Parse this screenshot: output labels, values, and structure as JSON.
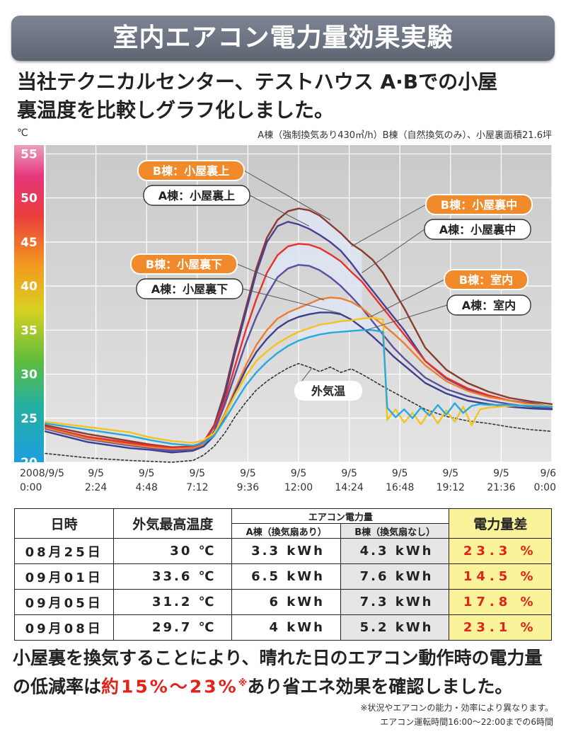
{
  "banner": {
    "title": "室内エアコン電力量効果実験"
  },
  "subtitle": {
    "line1": "当社テクニカルセンター、テストハウス A·Bでの小屋",
    "line2": "裏温度を比較しグラフ化しました。"
  },
  "note_top": "A棟（強制換気あり430㎥/h）B棟（自然換気のみ）、小屋裏面積21.6坪",
  "unit_label": "℃",
  "chart_data": {
    "type": "line",
    "x_ticks": [
      "2008/9/5 0:00",
      "9/5 2:24",
      "9/5 4:48",
      "9/5 7:12",
      "9/5 9:36",
      "9/5 12:00",
      "9/5 14:24",
      "9/5 16:48",
      "9/5 19:12",
      "9/5 21:36",
      "9/6 0:00"
    ],
    "y_ticks": [
      20,
      25,
      30,
      35,
      40,
      45,
      50,
      55
    ],
    "ylim": [
      20,
      56
    ],
    "xlim": [
      0,
      24
    ],
    "grid": true,
    "series": [
      {
        "name": "B棟：小屋裏上",
        "color": "#8a3b2d",
        "x": [
          0,
          2,
          4,
          5,
          6,
          7,
          7.5,
          8,
          8.5,
          9,
          9.5,
          10,
          10.5,
          11,
          11.5,
          12,
          12.5,
          13,
          13.5,
          14,
          14.5,
          15,
          15.5,
          16,
          16.5,
          17,
          18,
          19,
          20,
          21,
          22,
          23,
          24
        ],
        "y": [
          24.2,
          23.2,
          22.4,
          22.0,
          21.7,
          21.8,
          22.3,
          24.2,
          28,
          33,
          37.5,
          42,
          45.5,
          47.5,
          48.5,
          48.8,
          48.6,
          48,
          47,
          46,
          44.8,
          44,
          43,
          41.5,
          39.5,
          37.5,
          33,
          30.5,
          29,
          28,
          27.3,
          26.9,
          26.6
        ]
      },
      {
        "name": "A棟：小屋裏上",
        "color": "#4a3f93",
        "x": [
          0,
          2,
          4,
          5,
          6,
          7,
          7.5,
          8,
          8.5,
          9,
          9.5,
          10,
          10.5,
          11,
          11.5,
          12,
          12.5,
          13,
          13.5,
          14,
          14.5,
          15,
          15.5,
          16,
          16.5,
          17,
          18,
          19,
          20,
          21,
          22,
          23,
          24
        ],
        "y": [
          24.0,
          22.8,
          22.1,
          21.7,
          21.4,
          21.6,
          22.2,
          24,
          27.5,
          32.5,
          37,
          41.5,
          45,
          46.8,
          47.3,
          47,
          46.5,
          45.8,
          45,
          44,
          42.6,
          41,
          39.5,
          38,
          36.5,
          35,
          31.5,
          29.5,
          28.3,
          27.5,
          27,
          26.7,
          26.3
        ]
      },
      {
        "name": "B棟：小屋裏中",
        "color": "#e7312b",
        "x": [
          0,
          2,
          4,
          5,
          6,
          7,
          7.5,
          8,
          8.5,
          9,
          9.5,
          10,
          10.5,
          11,
          11.5,
          12,
          12.5,
          13,
          13.5,
          14,
          14.5,
          15,
          15.5,
          16,
          16.5,
          17,
          18,
          19,
          20,
          21,
          22,
          23,
          24
        ],
        "y": [
          24.0,
          22.9,
          22.2,
          21.9,
          21.6,
          21.8,
          22.3,
          24,
          27,
          31,
          35,
          38.5,
          41.5,
          43.5,
          44.5,
          44.8,
          44.7,
          44.3,
          43.6,
          42.8,
          41.6,
          40.5,
          39,
          37.5,
          36,
          34.5,
          31.5,
          29.6,
          28.4,
          27.6,
          27,
          26.6,
          26.3
        ]
      },
      {
        "name": "A棟：小屋裏中",
        "color": "#5a4f9e",
        "x": [
          0,
          2,
          4,
          5,
          6,
          7,
          7.5,
          8,
          8.5,
          9,
          9.5,
          10,
          10.5,
          11,
          11.5,
          12,
          12.5,
          13,
          13.5,
          14,
          14.5,
          15,
          15.5,
          16,
          16.5,
          17,
          18,
          19,
          20,
          21,
          22,
          23,
          24
        ],
        "y": [
          23.8,
          22.6,
          21.9,
          21.6,
          21.3,
          21.5,
          22,
          23.5,
          26.5,
          30,
          33.5,
          36.5,
          39,
          41,
          42,
          42.4,
          42.3,
          41.8,
          41,
          40,
          38.8,
          37.5,
          36,
          34.5,
          33,
          31.8,
          29.6,
          28.3,
          27.5,
          27,
          26.6,
          26.3,
          26.1
        ]
      },
      {
        "name": "B棟：小屋裏下",
        "color": "#ee7d31",
        "x": [
          0,
          2,
          4,
          5,
          6,
          7,
          7.5,
          8,
          8.5,
          9,
          9.5,
          10,
          10.5,
          11,
          11.5,
          12,
          12.5,
          13,
          13.5,
          14,
          14.5,
          15,
          15.5,
          16,
          16.5,
          17,
          18,
          19,
          20,
          21,
          22,
          23,
          24
        ],
        "y": [
          23.9,
          22.7,
          22.0,
          21.7,
          21.5,
          21.6,
          22,
          23.2,
          25.5,
          28.3,
          31,
          33.3,
          35,
          36.3,
          37,
          37.5,
          38,
          38.5,
          38.7,
          38.6,
          38.2,
          37.5,
          36.5,
          35.6,
          34.6,
          33.5,
          31,
          29.2,
          28.1,
          27.4,
          27,
          26.6,
          26.3
        ]
      },
      {
        "name": "A棟：小屋裏下",
        "color": "#3b3f8f",
        "x": [
          0,
          2,
          4,
          5,
          6,
          7,
          7.5,
          8,
          8.5,
          9,
          9.5,
          10,
          10.5,
          11,
          11.5,
          12,
          12.5,
          13,
          13.5,
          14,
          14.5,
          15,
          15.5,
          16,
          16.5,
          17,
          18,
          19,
          20,
          21,
          22,
          23,
          24
        ],
        "y": [
          23.5,
          22.3,
          21.6,
          21.4,
          21.1,
          21.3,
          21.8,
          23,
          25.2,
          28,
          30.5,
          32.5,
          34,
          35.2,
          36,
          36.5,
          36.8,
          37,
          37,
          36.8,
          36.2,
          35.3,
          34.3,
          33.2,
          32,
          31,
          29,
          27.8,
          27,
          26.6,
          26.3,
          26.1,
          26.0
        ]
      },
      {
        "name": "B棟：室内",
        "color": "#f3c31f",
        "x": [
          0,
          2,
          4,
          5,
          6,
          7,
          7.5,
          8,
          8.5,
          9,
          9.5,
          10,
          10.5,
          11,
          11.5,
          12,
          12.5,
          13,
          13.5,
          14,
          14.5,
          15,
          15.5,
          16,
          16.2,
          16.6,
          17,
          17.4,
          17.8,
          18.2,
          18.6,
          19,
          19.4,
          19.8,
          20.2,
          20.6,
          21,
          22,
          23,
          24
        ],
        "y": [
          24.6,
          24.0,
          23.4,
          22.8,
          22.4,
          22.2,
          22.5,
          23.3,
          25.3,
          27.7,
          29.8,
          31.5,
          32.6,
          33.5,
          34.2,
          34.8,
          35.2,
          35.6,
          35.8,
          36,
          36.1,
          36.3,
          36.4,
          36.2,
          24.8,
          26,
          24.5,
          25.6,
          24.3,
          25.8,
          24.4,
          25.9,
          24.6,
          26.3,
          24.2,
          26,
          26.2,
          26.4,
          26.5,
          26.4
        ]
      },
      {
        "name": "A棟：室内",
        "color": "#27a9df",
        "x": [
          0,
          2,
          4,
          5,
          6,
          7,
          7.5,
          8,
          8.5,
          9,
          9.5,
          10,
          10.5,
          11,
          11.5,
          12,
          12.5,
          13,
          13.5,
          14,
          14.5,
          15,
          15.5,
          16,
          16.2,
          16.6,
          17,
          17.4,
          17.8,
          18.2,
          18.6,
          19,
          19.4,
          19.8,
          20.2,
          20.6,
          21,
          22,
          23,
          24
        ],
        "y": [
          24.4,
          23.7,
          23.0,
          22.5,
          22.1,
          21.9,
          22.2,
          23,
          24.8,
          26.8,
          28.7,
          30.2,
          31.4,
          32.4,
          33.2,
          33.8,
          34.2,
          34.5,
          34.7,
          34.8,
          34.9,
          35,
          35,
          34.8,
          26.2,
          25.1,
          26,
          25,
          26.2,
          25.3,
          26.5,
          25.4,
          26.7,
          25.6,
          26.4,
          26.6,
          26.5,
          26.5,
          26.4,
          26.3
        ]
      },
      {
        "name": "外気温",
        "color": "#333333",
        "dashed": true,
        "x": [
          0,
          2,
          4,
          6,
          7,
          7.5,
          8,
          8.5,
          9,
          9.5,
          10,
          10.5,
          11,
          11.5,
          12,
          12.5,
          13,
          13.5,
          14,
          14.5,
          15,
          15.5,
          16,
          17,
          18,
          19,
          20,
          21,
          22,
          23,
          24
        ],
        "y": [
          21.0,
          20.5,
          20.2,
          20.0,
          20.2,
          20.8,
          21.8,
          23.3,
          25.2,
          26.8,
          28.2,
          29.2,
          30,
          30.7,
          31.2,
          30.8,
          30.3,
          30.8,
          30.2,
          30.6,
          30,
          29.3,
          28.6,
          27.3,
          26,
          25.2,
          24.7,
          24.4,
          24,
          23.7,
          23.5
        ]
      }
    ],
    "bands": [
      {
        "upper": "B棟：小屋裏上",
        "lower": "A棟：小屋裏上",
        "x_range": [
          12,
          15
        ]
      },
      {
        "upper": "B棟：小屋裏中",
        "lower": "A棟：小屋裏中",
        "x_range": [
          10.5,
          15
        ]
      },
      {
        "upper": "B棟：小屋裏下",
        "lower": "A棟：小屋裏下",
        "x_range": [
          11.5,
          15
        ]
      },
      {
        "upper": "B棟：室内",
        "lower": "A棟：室内",
        "x_range": [
          12,
          16
        ]
      }
    ],
    "labels": [
      {
        "text": "B棟：小屋裏上",
        "style": "orange",
        "target": [
          13.5,
          47.5
        ]
      },
      {
        "text": "A棟：小屋裏上",
        "style": "white",
        "target": [
          12.5,
          46.8
        ]
      },
      {
        "text": "B棟：小屋裏中",
        "style": "orange",
        "target": [
          14.5,
          44.5
        ]
      },
      {
        "text": "A棟：小屋裏中",
        "style": "white",
        "target": [
          15.0,
          41.5
        ]
      },
      {
        "text": "B棟：小屋裏下",
        "style": "orange",
        "target": [
          13.2,
          38.4
        ]
      },
      {
        "text": "A棟：小屋裏下",
        "style": "white",
        "target": [
          14.0,
          36.9
        ]
      },
      {
        "text": "B棟：室内",
        "style": "orange",
        "target": [
          15.4,
          36.5
        ]
      },
      {
        "text": "A棟：室内",
        "style": "white",
        "target": [
          15.2,
          35.0
        ]
      },
      {
        "text": "外気温",
        "style": "plain",
        "target": [
          12.6,
          30.6
        ]
      }
    ]
  },
  "table": {
    "headers": {
      "date": "日時",
      "max_temp": "外気最高温度",
      "power": "エアコン電力量",
      "a": "A棟（換気扇あり）",
      "b": "B棟（換気扇なし）",
      "diff": "電力量差"
    },
    "rows": [
      {
        "date": "08月25日",
        "temp": "30 ℃",
        "a": "3.3 kWh",
        "b": "4.3 kWh",
        "diff": "23.3 %"
      },
      {
        "date": "09月01日",
        "temp": "33.6 ℃",
        "a": "6.5 kWh",
        "b": "7.6 kWh",
        "diff": "14.5 %"
      },
      {
        "date": "09月05日",
        "temp": "31.2 ℃",
        "a": "6 kWh",
        "b": "7.3 kWh",
        "diff": "17.8 %"
      },
      {
        "date": "09月08日",
        "temp": "29.7 ℃",
        "a": "4 kWh",
        "b": "5.2 kWh",
        "diff": "23.1 %"
      }
    ]
  },
  "conclusion": {
    "part1": "小屋裏を換気することにより、晴れた日のエアコン動作時の電力量の低減率は",
    "highlight": "約15%〜23%",
    "mark": "※",
    "part2": "あり省エネ効果を確認しました。"
  },
  "footnote": {
    "line1": "※状況やエアコンの能力・効率により異なります。",
    "line2": "エアコン運転時間16:00〜22:00までの6時間"
  }
}
